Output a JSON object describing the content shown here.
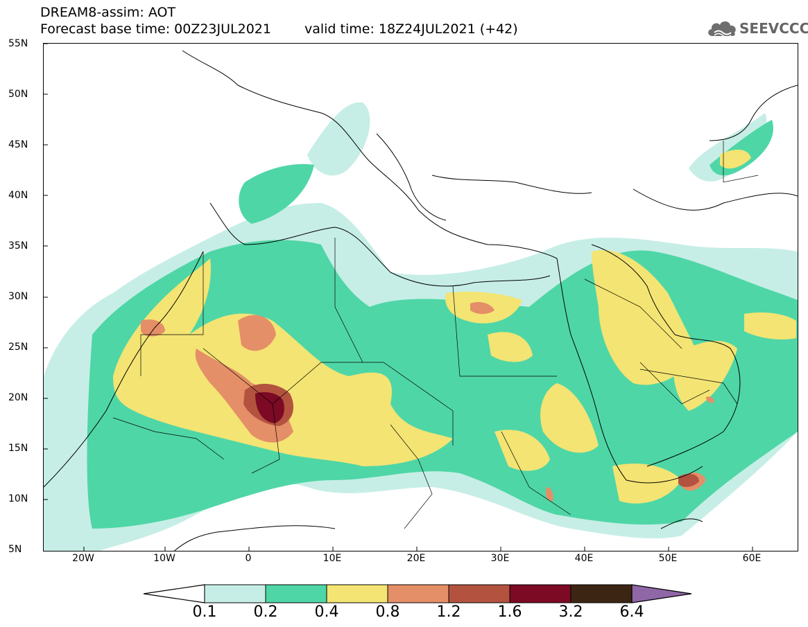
{
  "header": {
    "title_line1": "DREAM8-assim: AOT",
    "title_line2_base": "Forecast base time: 00Z23JUL2021",
    "title_line2_valid": "valid time: 18Z24JUL2021 (+42)"
  },
  "logo": {
    "text": "SEEVCCC",
    "icon": "cloud-icon"
  },
  "map": {
    "lat_labels": [
      "55N",
      "50N",
      "45N",
      "40N",
      "35N",
      "30N",
      "25N",
      "20N",
      "15N",
      "10N",
      "5N"
    ],
    "lon_labels": [
      "20W",
      "10W",
      "0",
      "10E",
      "20E",
      "30E",
      "40E",
      "50E",
      "60E"
    ],
    "lon_range": [
      -25,
      65
    ],
    "lat_range": [
      5,
      55
    ]
  },
  "colorbar": {
    "labels": [
      "0.1",
      "0.2",
      "0.4",
      "0.8",
      "1.2",
      "1.6",
      "3.2",
      "6.4"
    ],
    "colors": [
      "#ffffff",
      "#c6eee6",
      "#4fd6a6",
      "#f4e473",
      "#e48f67",
      "#b3533f",
      "#7c0a24",
      "#3d2514",
      "#8f67a6"
    ]
  }
}
